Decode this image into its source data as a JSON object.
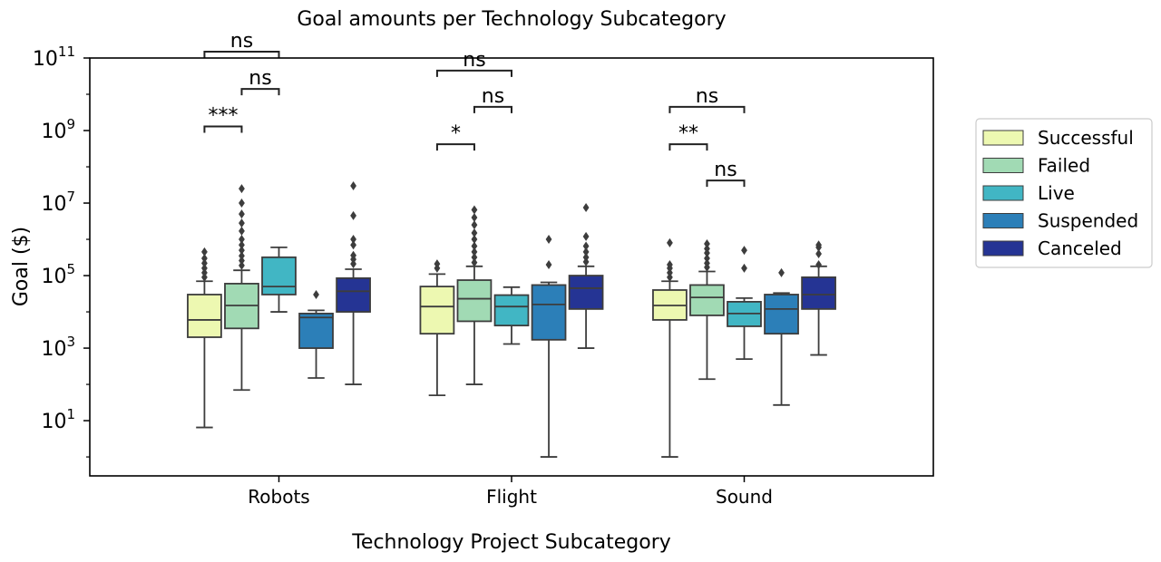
{
  "chart_data": {
    "type": "box",
    "title": "Goal amounts per Technology Subcategory",
    "xlabel": "Technology Project Subcategory",
    "ylabel": "Goal ($)",
    "yscale": "log",
    "ylim": [
      0.3,
      100000000000
    ],
    "y_ticks": [
      {
        "value": 10,
        "base": "10",
        "exp": "1"
      },
      {
        "value": 1000,
        "base": "10",
        "exp": "3"
      },
      {
        "value": 100000,
        "base": "10",
        "exp": "5"
      },
      {
        "value": 10000000,
        "base": "10",
        "exp": "7"
      },
      {
        "value": 1000000000,
        "base": "10",
        "exp": "9"
      },
      {
        "value": 100000000000,
        "base": "10",
        "exp": "11"
      }
    ],
    "categories": [
      "Robots",
      "Flight",
      "Sound"
    ],
    "legend_position": "outside-right",
    "series": [
      {
        "name": "Successful",
        "color": "#edf8b1",
        "boxes": [
          {
            "whislo": 6.5,
            "q1": 2000,
            "med": 6000,
            "q3": 30000,
            "whishi": 70000,
            "fliers": [
              90000,
              120000,
              160000,
              220000,
              300000,
              450000
            ]
          },
          {
            "whislo": 50,
            "q1": 2500,
            "med": 14000,
            "q3": 50000,
            "whishi": 110000,
            "fliers": [
              160000,
              210000
            ]
          },
          {
            "whislo": 1,
            "q1": 6000,
            "med": 15000,
            "q3": 40000,
            "whishi": 70000,
            "fliers": [
              90000,
              120000,
              160000,
              200000,
              800000
            ]
          }
        ]
      },
      {
        "name": "Failed",
        "color": "#a1dab4",
        "boxes": [
          {
            "whislo": 70,
            "q1": 3500,
            "med": 15000,
            "q3": 60000,
            "whishi": 140000,
            "fliers": [
              190000,
              260000,
              350000,
              500000,
              700000,
              1000000,
              1700000,
              2800000,
              5000000,
              10000000,
              25000000
            ]
          },
          {
            "whislo": 100,
            "q1": 5500,
            "med": 23000,
            "q3": 75000,
            "whishi": 180000,
            "fliers": [
              230000,
              320000,
              450000,
              650000,
              1000000,
              1500000,
              2500000,
              4000000,
              6500000
            ]
          },
          {
            "whislo": 140,
            "q1": 8000,
            "med": 25000,
            "q3": 55000,
            "whishi": 130000,
            "fliers": [
              170000,
              220000,
              300000,
              420000,
              550000,
              750000
            ]
          }
        ]
      },
      {
        "name": "Live",
        "color": "#41b6c4",
        "boxes": [
          {
            "whislo": 10000,
            "q1": 30000,
            "med": 50000,
            "q3": 320000,
            "whishi": 600000,
            "fliers": []
          },
          {
            "whislo": 1300,
            "q1": 4200,
            "med": 14000,
            "q3": 29000,
            "whishi": 48000,
            "fliers": []
          },
          {
            "whislo": 500,
            "q1": 4000,
            "med": 9000,
            "q3": 19000,
            "whishi": 24000,
            "fliers": [
              160000,
              500000
            ]
          }
        ]
      },
      {
        "name": "Suspended",
        "color": "#2c7fb8",
        "boxes": [
          {
            "whislo": 150,
            "q1": 1000,
            "med": 7000,
            "q3": 9000,
            "whishi": 11000,
            "fliers": [
              30000
            ]
          },
          {
            "whislo": 1,
            "q1": 1700,
            "med": 16000,
            "q3": 55000,
            "whishi": 65000,
            "fliers": [
              200000,
              1000000
            ]
          },
          {
            "whislo": 27,
            "q1": 2500,
            "med": 12000,
            "q3": 30000,
            "whishi": 33000,
            "fliers": [
              120000
            ]
          }
        ]
      },
      {
        "name": "Canceled",
        "color": "#253494",
        "boxes": [
          {
            "whislo": 100,
            "q1": 10000,
            "med": 37000,
            "q3": 85000,
            "whishi": 150000,
            "fliers": [
              210000,
              280000,
              360000,
              700000,
              1000000,
              4500000,
              30000000
            ]
          },
          {
            "whislo": 1000,
            "q1": 12000,
            "med": 45000,
            "q3": 100000,
            "whishi": 180000,
            "fliers": [
              240000,
              320000,
              450000,
              650000,
              1200000,
              7500000
            ]
          },
          {
            "whislo": 650,
            "q1": 12000,
            "med": 30000,
            "q3": 90000,
            "whishi": 180000,
            "fliers": [
              200000,
              400000,
              600000,
              700000
            ]
          }
        ]
      }
    ],
    "annotations": [
      {
        "category": "Robots",
        "from": "Successful",
        "to": "Failed",
        "y": 1300000000,
        "label": "***"
      },
      {
        "category": "Robots",
        "from": "Failed",
        "to": "Live",
        "y": 14000000000,
        "label": "ns"
      },
      {
        "category": "Robots",
        "from": "Successful",
        "to": "Live",
        "y": 150000000000,
        "label": "ns"
      },
      {
        "category": "Flight",
        "from": "Successful",
        "to": "Failed",
        "y": 420000000,
        "label": "*"
      },
      {
        "category": "Flight",
        "from": "Failed",
        "to": "Live",
        "y": 4500000000,
        "label": "ns"
      },
      {
        "category": "Flight",
        "from": "Successful",
        "to": "Live",
        "y": 45000000000,
        "label": "ns"
      },
      {
        "category": "Sound",
        "from": "Successful",
        "to": "Failed",
        "y": 420000000,
        "label": "**"
      },
      {
        "category": "Sound",
        "from": "Failed",
        "to": "Live",
        "y": 42000000,
        "label": "ns"
      },
      {
        "category": "Sound",
        "from": "Successful",
        "to": "Live",
        "y": 4500000000,
        "label": "ns"
      }
    ]
  }
}
